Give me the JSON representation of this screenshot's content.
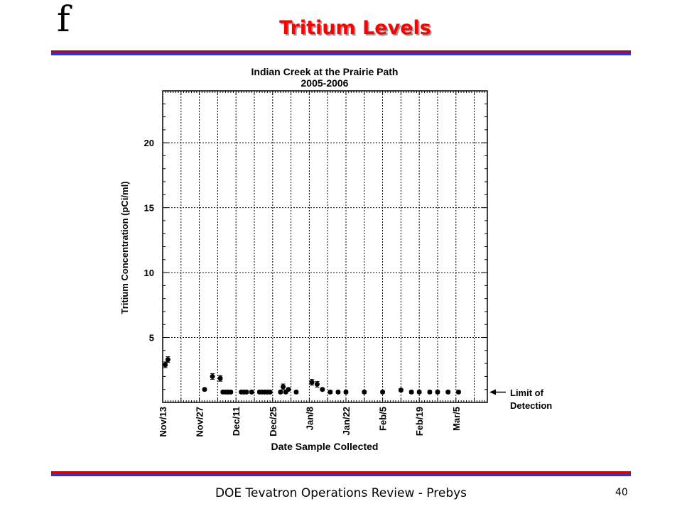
{
  "slide": {
    "logo": "f",
    "title": "Tritium Levels",
    "footer": "DOE Tevatron Operations Review - Prebys",
    "page_number": "40"
  },
  "chart_data": {
    "type": "scatter",
    "title": "Indian  Creek at the Prairie Path",
    "subtitle": "2005-2006",
    "xlabel": "Date Sample Collected",
    "ylabel": "Tritium Concentration (pCi/ml)",
    "ylim": [
      0,
      24
    ],
    "xlim": [
      "2005-11-13",
      "2006-03-17"
    ],
    "x_ticks": [
      "Nov/13",
      "Nov/27",
      "Dec/11",
      "Dec/25",
      "Jan/8",
      "Jan/22",
      "Feb/5",
      "Feb/19",
      "Mar/5"
    ],
    "y_ticks": [
      5,
      10,
      15,
      20
    ],
    "grid": true,
    "limit_label": [
      "Limit of",
      "Detection"
    ],
    "limit_of_detection": 0.9,
    "series": [
      {
        "points": [
          {
            "x": "2005-11-14",
            "y": 2.9
          },
          {
            "x": "2005-11-15",
            "y": 3.3
          },
          {
            "x": "2005-11-29",
            "y": 1.0
          },
          {
            "x": "2005-12-02",
            "y": 2.0
          },
          {
            "x": "2005-12-05",
            "y": 1.85
          },
          {
            "x": "2005-12-06",
            "y": 0.8
          },
          {
            "x": "2005-12-07",
            "y": 0.8
          },
          {
            "x": "2005-12-08",
            "y": 0.8
          },
          {
            "x": "2005-12-09",
            "y": 0.8
          },
          {
            "x": "2005-12-13",
            "y": 0.8
          },
          {
            "x": "2005-12-14",
            "y": 0.8
          },
          {
            "x": "2005-12-15",
            "y": 0.8
          },
          {
            "x": "2005-12-17",
            "y": 0.8
          },
          {
            "x": "2005-12-20",
            "y": 0.8
          },
          {
            "x": "2005-12-21",
            "y": 0.8
          },
          {
            "x": "2005-12-22",
            "y": 0.8
          },
          {
            "x": "2005-12-23",
            "y": 0.8
          },
          {
            "x": "2005-12-24",
            "y": 0.8
          },
          {
            "x": "2005-12-28",
            "y": 0.8
          },
          {
            "x": "2005-12-29",
            "y": 1.2
          },
          {
            "x": "2005-12-30",
            "y": 0.8
          },
          {
            "x": "2005-12-31",
            "y": 1.0
          },
          {
            "x": "2006-01-03",
            "y": 0.8
          },
          {
            "x": "2006-01-09",
            "y": 1.55
          },
          {
            "x": "2006-01-11",
            "y": 1.4
          },
          {
            "x": "2006-01-13",
            "y": 1.0
          },
          {
            "x": "2006-01-16",
            "y": 0.8
          },
          {
            "x": "2006-01-19",
            "y": 0.8
          },
          {
            "x": "2006-01-22",
            "y": 0.8
          },
          {
            "x": "2006-01-29",
            "y": 0.8
          },
          {
            "x": "2006-02-05",
            "y": 0.8
          },
          {
            "x": "2006-02-12",
            "y": 0.95
          },
          {
            "x": "2006-02-16",
            "y": 0.8
          },
          {
            "x": "2006-02-19",
            "y": 0.8
          },
          {
            "x": "2006-02-23",
            "y": 0.8
          },
          {
            "x": "2006-02-26",
            "y": 0.8
          },
          {
            "x": "2006-03-02",
            "y": 0.8
          },
          {
            "x": "2006-03-06",
            "y": 0.8
          }
        ]
      }
    ]
  }
}
